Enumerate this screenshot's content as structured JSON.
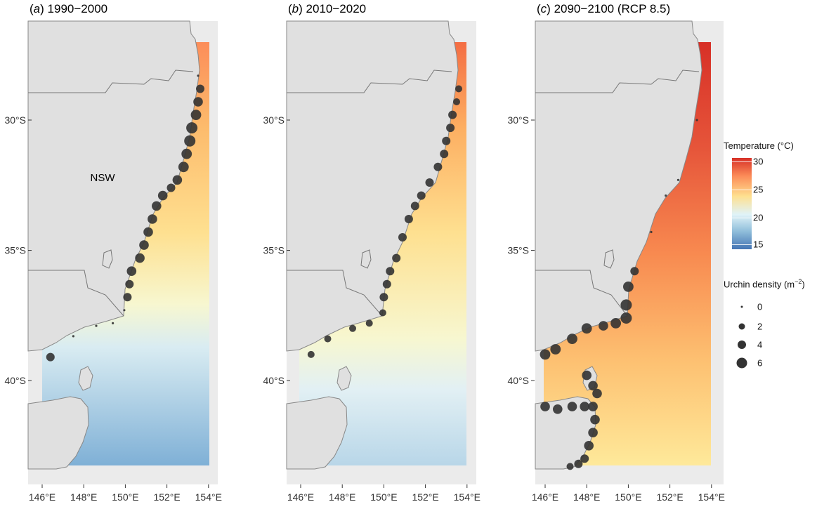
{
  "panels": [
    {
      "letter": "a",
      "title": " 1990−2000",
      "region_label": "NSW"
    },
    {
      "letter": "b",
      "title": " 2010−2020",
      "region_label": ""
    },
    {
      "letter": "c",
      "title": " 2090−2100 (RCP 8.5)",
      "region_label": ""
    }
  ],
  "axes": {
    "x_ticks": [
      "146°E",
      "148°E",
      "150°E",
      "152°E",
      "154°E"
    ],
    "y_ticks": [
      "30°S",
      "35°S",
      "40°S"
    ]
  },
  "legend": {
    "temperature_title": "Temperature (°C)",
    "temperature_ticks": [
      "30",
      "25",
      "20",
      "15"
    ],
    "density_title_prefix": "Urchin density (m",
    "density_title_exp": "−2",
    "density_title_suffix": ")",
    "density_levels": [
      "0",
      "2",
      "4",
      "6"
    ]
  },
  "colors": {
    "land": "#e0e0e0",
    "panel_bg": "#ebebeb",
    "grid": "#ffffff",
    "points": "#333333",
    "warm": "#d73027",
    "cool": "#4575b4"
  },
  "chart_data": [
    {
      "type": "map",
      "panel": "a",
      "period": "1990-2000",
      "temperature_range_c": [
        15,
        31
      ],
      "sst_north_c": 27,
      "sst_mid_c": 22,
      "sst_south_c": 16,
      "urchin_density_points": [
        {
          "lon": 153.5,
          "lat": -28.3,
          "density": 0.2
        },
        {
          "lon": 153.6,
          "lat": -28.8,
          "density": 2
        },
        {
          "lon": 153.5,
          "lat": -29.3,
          "density": 3
        },
        {
          "lon": 153.4,
          "lat": -29.8,
          "density": 4
        },
        {
          "lon": 153.2,
          "lat": -30.3,
          "density": 5
        },
        {
          "lon": 153.1,
          "lat": -30.8,
          "density": 5
        },
        {
          "lon": 152.95,
          "lat": -31.3,
          "density": 4
        },
        {
          "lon": 152.8,
          "lat": -31.8,
          "density": 4
        },
        {
          "lon": 152.5,
          "lat": -32.3,
          "density": 3
        },
        {
          "lon": 152.2,
          "lat": -32.6,
          "density": 2
        },
        {
          "lon": 151.8,
          "lat": -32.9,
          "density": 3
        },
        {
          "lon": 151.5,
          "lat": -33.3,
          "density": 3
        },
        {
          "lon": 151.3,
          "lat": -33.8,
          "density": 3
        },
        {
          "lon": 151.1,
          "lat": -34.3,
          "density": 3
        },
        {
          "lon": 150.9,
          "lat": -34.8,
          "density": 3
        },
        {
          "lon": 150.7,
          "lat": -35.3,
          "density": 3
        },
        {
          "lon": 150.3,
          "lat": -35.8,
          "density": 3
        },
        {
          "lon": 150.2,
          "lat": -36.3,
          "density": 2
        },
        {
          "lon": 150.1,
          "lat": -36.8,
          "density": 2
        },
        {
          "lon": 149.95,
          "lat": -37.3,
          "density": 0.5
        },
        {
          "lon": 149.4,
          "lat": -37.8,
          "density": 0.3
        },
        {
          "lon": 148.6,
          "lat": -37.9,
          "density": 0.3
        },
        {
          "lon": 147.5,
          "lat": -38.3,
          "density": 0.3
        },
        {
          "lon": 146.4,
          "lat": -39.1,
          "density": 2
        }
      ]
    },
    {
      "type": "map",
      "panel": "b",
      "period": "2010-2020",
      "temperature_range_c": [
        15,
        31
      ],
      "sst_north_c": 27.5,
      "sst_mid_c": 23,
      "sst_south_c": 17.5,
      "urchin_density_points": [
        {
          "lon": 153.6,
          "lat": -28.8,
          "density": 1
        },
        {
          "lon": 153.5,
          "lat": -29.3,
          "density": 1
        },
        {
          "lon": 153.3,
          "lat": -29.8,
          "density": 2
        },
        {
          "lon": 153.2,
          "lat": -30.3,
          "density": 2
        },
        {
          "lon": 153.0,
          "lat": -30.8,
          "density": 2
        },
        {
          "lon": 152.9,
          "lat": -31.3,
          "density": 2
        },
        {
          "lon": 152.6,
          "lat": -31.8,
          "density": 2
        },
        {
          "lon": 152.2,
          "lat": -32.4,
          "density": 2
        },
        {
          "lon": 151.8,
          "lat": -32.9,
          "density": 2
        },
        {
          "lon": 151.5,
          "lat": -33.3,
          "density": 2
        },
        {
          "lon": 151.2,
          "lat": -33.8,
          "density": 2
        },
        {
          "lon": 150.9,
          "lat": -34.5,
          "density": 2
        },
        {
          "lon": 150.6,
          "lat": -35.3,
          "density": 2
        },
        {
          "lon": 150.3,
          "lat": -35.8,
          "density": 2
        },
        {
          "lon": 150.15,
          "lat": -36.3,
          "density": 2
        },
        {
          "lon": 150.0,
          "lat": -36.8,
          "density": 2
        },
        {
          "lon": 149.95,
          "lat": -37.4,
          "density": 1
        },
        {
          "lon": 149.3,
          "lat": -37.8,
          "density": 1
        },
        {
          "lon": 148.5,
          "lat": -38.0,
          "density": 1
        },
        {
          "lon": 147.3,
          "lat": -38.4,
          "density": 1
        },
        {
          "lon": 146.5,
          "lat": -39.0,
          "density": 1
        }
      ]
    },
    {
      "type": "map",
      "panel": "c",
      "period": "2090-2100 (RCP 8.5)",
      "temperature_range_c": [
        15,
        31
      ],
      "sst_north_c": 30.5,
      "sst_mid_c": 27,
      "sst_south_c": 22,
      "urchin_density_points": [
        {
          "lon": 153.3,
          "lat": -30.0,
          "density": 0.2
        },
        {
          "lon": 152.4,
          "lat": -32.3,
          "density": 0.5
        },
        {
          "lon": 151.8,
          "lat": -32.9,
          "density": 0.5
        },
        {
          "lon": 151.1,
          "lat": -34.3,
          "density": 0.5
        },
        {
          "lon": 150.3,
          "lat": -35.8,
          "density": 2
        },
        {
          "lon": 150.0,
          "lat": -36.4,
          "density": 4
        },
        {
          "lon": 149.9,
          "lat": -37.1,
          "density": 5
        },
        {
          "lon": 149.9,
          "lat": -37.6,
          "density": 5
        },
        {
          "lon": 149.4,
          "lat": -37.8,
          "density": 4
        },
        {
          "lon": 148.8,
          "lat": -37.9,
          "density": 3
        },
        {
          "lon": 148.0,
          "lat": -38.0,
          "density": 4
        },
        {
          "lon": 147.3,
          "lat": -38.4,
          "density": 4
        },
        {
          "lon": 146.5,
          "lat": -38.8,
          "density": 4
        },
        {
          "lon": 146.0,
          "lat": -39.0,
          "density": 4
        },
        {
          "lon": 148.0,
          "lat": -39.8,
          "density": 3
        },
        {
          "lon": 148.3,
          "lat": -40.2,
          "density": 3
        },
        {
          "lon": 148.5,
          "lat": -40.5,
          "density": 3
        },
        {
          "lon": 148.3,
          "lat": -41.0,
          "density": 3
        },
        {
          "lon": 147.9,
          "lat": -41.0,
          "density": 3
        },
        {
          "lon": 147.3,
          "lat": -41.0,
          "density": 3
        },
        {
          "lon": 146.6,
          "lat": -41.1,
          "density": 3
        },
        {
          "lon": 146.0,
          "lat": -41.0,
          "density": 3
        },
        {
          "lon": 148.4,
          "lat": -41.5,
          "density": 3
        },
        {
          "lon": 148.3,
          "lat": -42.0,
          "density": 3
        },
        {
          "lon": 148.1,
          "lat": -42.5,
          "density": 3
        },
        {
          "lon": 147.9,
          "lat": -43.0,
          "density": 2
        },
        {
          "lon": 147.6,
          "lat": -43.2,
          "density": 2
        },
        {
          "lon": 147.2,
          "lat": -43.3,
          "density": 1
        }
      ]
    }
  ]
}
